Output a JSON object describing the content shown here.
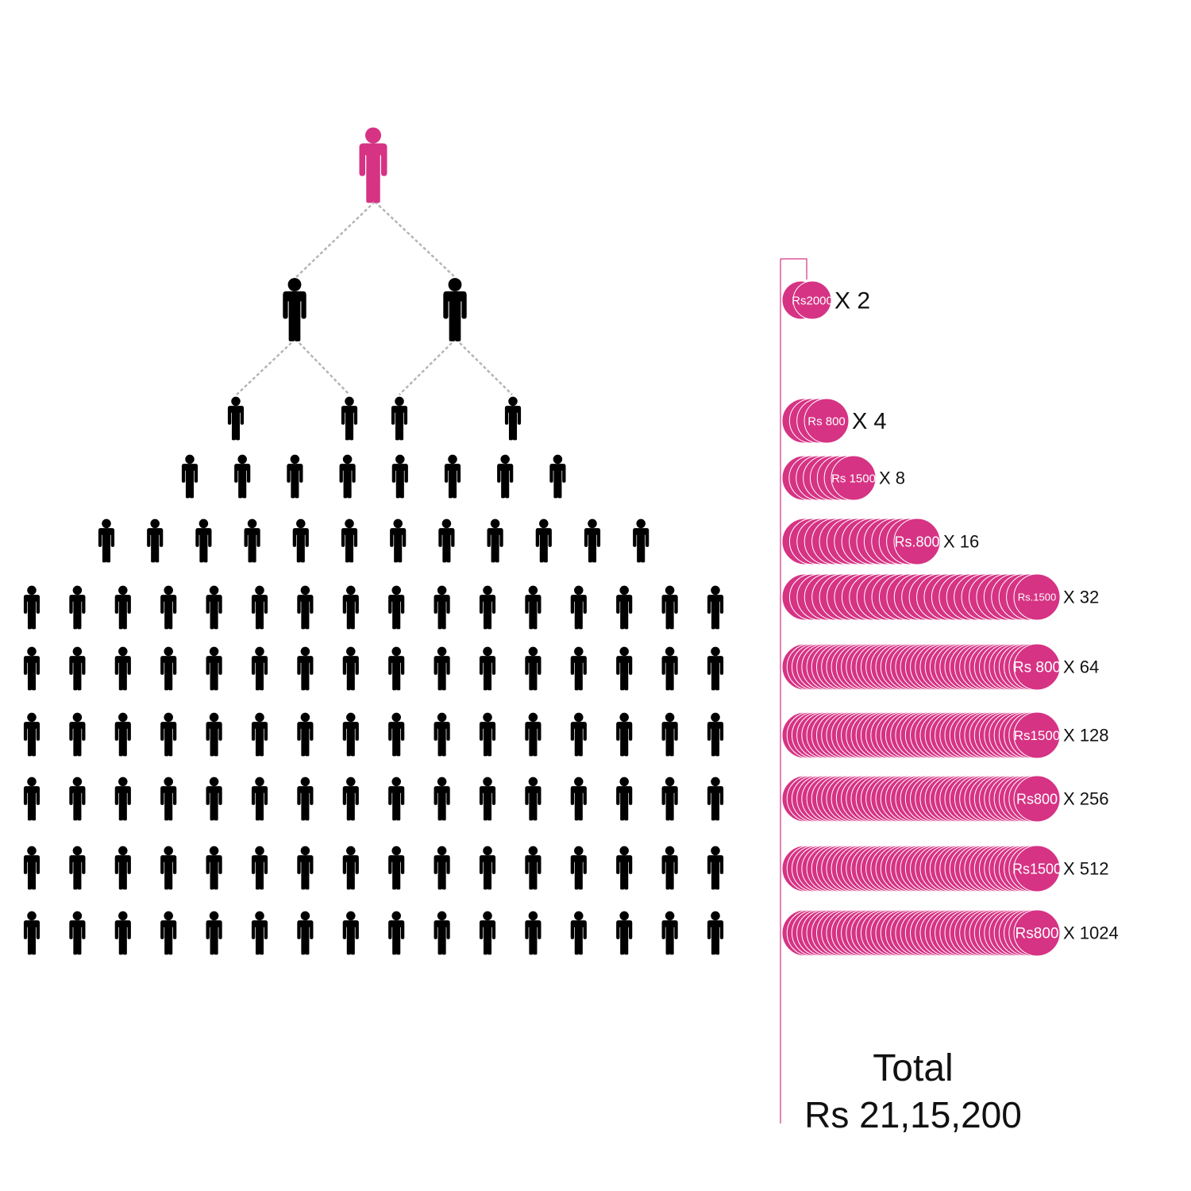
{
  "colors": {
    "accent": "#d63384",
    "figure": "#000000",
    "connector": "#b5b5b5",
    "coin_border": "#ffffff"
  },
  "top_person_icon": "person-icon-highlighted",
  "person_icon": "person-icon",
  "people_rows": [
    1,
    2,
    4,
    8,
    12,
    16,
    16,
    16,
    16,
    16,
    16
  ],
  "payout_rows": [
    {
      "amount_label": "Rs2000",
      "multiplier": "X 2",
      "count": 2
    },
    {
      "amount_label": "Rs 800",
      "multiplier": "X 4",
      "count": 4
    },
    {
      "amount_label": "Rs 1500",
      "multiplier": "X 8",
      "count": 8
    },
    {
      "amount_label": "Rs.800",
      "multiplier": "X 16",
      "count": 16
    },
    {
      "amount_label": "Rs.1500",
      "multiplier": "X 32",
      "count": 32
    },
    {
      "amount_label": "Rs 800",
      "multiplier": "X 64",
      "count": 64
    },
    {
      "amount_label": "Rs1500",
      "multiplier": "X 128",
      "count": 128
    },
    {
      "amount_label": "Rs800",
      "multiplier": "X 256",
      "count": 256
    },
    {
      "amount_label": "Rs1500",
      "multiplier": "X 512",
      "count": 512
    },
    {
      "amount_label": "Rs800",
      "multiplier": "X 1024",
      "count": 1024
    }
  ],
  "total": {
    "title": "Total",
    "value": "Rs 21,15,200"
  }
}
